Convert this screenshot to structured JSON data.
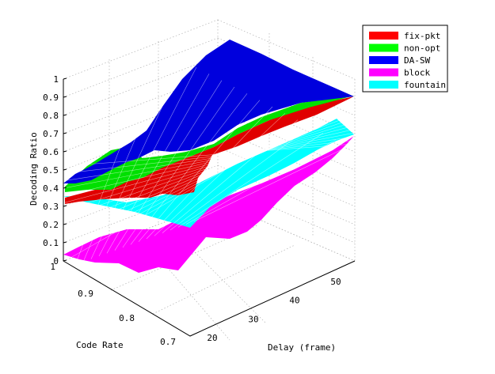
{
  "chart_data": {
    "type": "surface",
    "title": "",
    "xlabel": "Delay (frame)",
    "ylabel": "Code Rate",
    "zlabel": "Decoding Ratio",
    "x_ticks": [
      "20",
      "30",
      "40",
      "50"
    ],
    "y_ticks": [
      "0.7",
      "0.8",
      "0.9",
      "1"
    ],
    "z_ticks": [
      "0",
      "0.1",
      "0.2",
      "0.3",
      "0.4",
      "0.5",
      "0.6",
      "0.7",
      "0.8",
      "0.9",
      "1"
    ],
    "xlim": [
      15,
      55
    ],
    "ylim": [
      0.7,
      1.0
    ],
    "zlim": [
      0,
      1
    ],
    "grid": true,
    "legend_position": "top-right",
    "series": [
      {
        "name": "fix-pkt",
        "color": "#ff0000",
        "corner_values": {
          "x15_y1": 0.32,
          "x55_y1": 0.9,
          "x15_y07": 0.32,
          "x55_y07": 0.9
        }
      },
      {
        "name": "non-opt",
        "color": "#00ff00",
        "corner_values": {
          "x15_y1": 0.38,
          "x55_y1": 0.9,
          "x15_y07": 0.38,
          "x55_y07": 0.9
        }
      },
      {
        "name": "DA-SW",
        "color": "#0000ff",
        "corner_values": {
          "x15_y1": 0.36,
          "x55_y1": 0.9,
          "x15_y07": 0.92,
          "x55_y07": 0.9
        }
      },
      {
        "name": "block",
        "color": "#ff00ff",
        "corner_values": {
          "x15_y1": 0.05,
          "x55_y1": 0.7,
          "x15_y07": 0.05,
          "x55_y07": 0.7
        }
      },
      {
        "name": "fountain",
        "color": "#00ffff",
        "corner_values": {
          "x15_y1": 0.36,
          "x55_y1": 0.73,
          "x15_y07": 0.2,
          "x55_y07": 0.73
        }
      }
    ]
  }
}
